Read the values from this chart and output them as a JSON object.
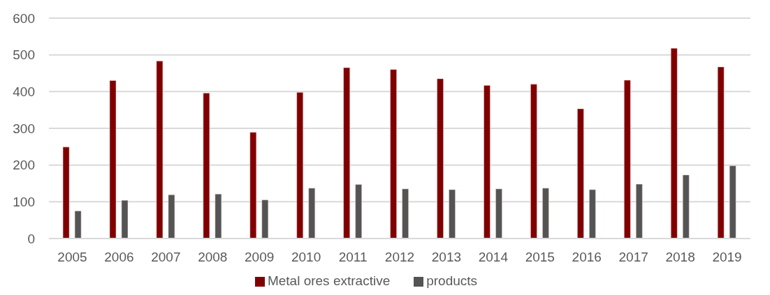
{
  "chart_data": {
    "type": "bar",
    "categories": [
      "2005",
      "2006",
      "2007",
      "2008",
      "2009",
      "2010",
      "2011",
      "2012",
      "2013",
      "2014",
      "2015",
      "2016",
      "2017",
      "2018",
      "2019"
    ],
    "series": [
      {
        "name": "Metal ores extractive",
        "color": "#800000",
        "values": [
          249,
          430,
          483,
          396,
          289,
          398,
          465,
          460,
          435,
          417,
          420,
          353,
          431,
          518,
          467
        ]
      },
      {
        "name": "products",
        "color": "#545454",
        "values": [
          75,
          104,
          119,
          121,
          105,
          137,
          147,
          135,
          133,
          135,
          137,
          133,
          148,
          173,
          198
        ]
      }
    ],
    "ylim": [
      0,
      600
    ],
    "yticks": [
      0,
      100,
      200,
      300,
      400,
      500,
      600
    ],
    "grid": "y",
    "legend": "bottom"
  }
}
